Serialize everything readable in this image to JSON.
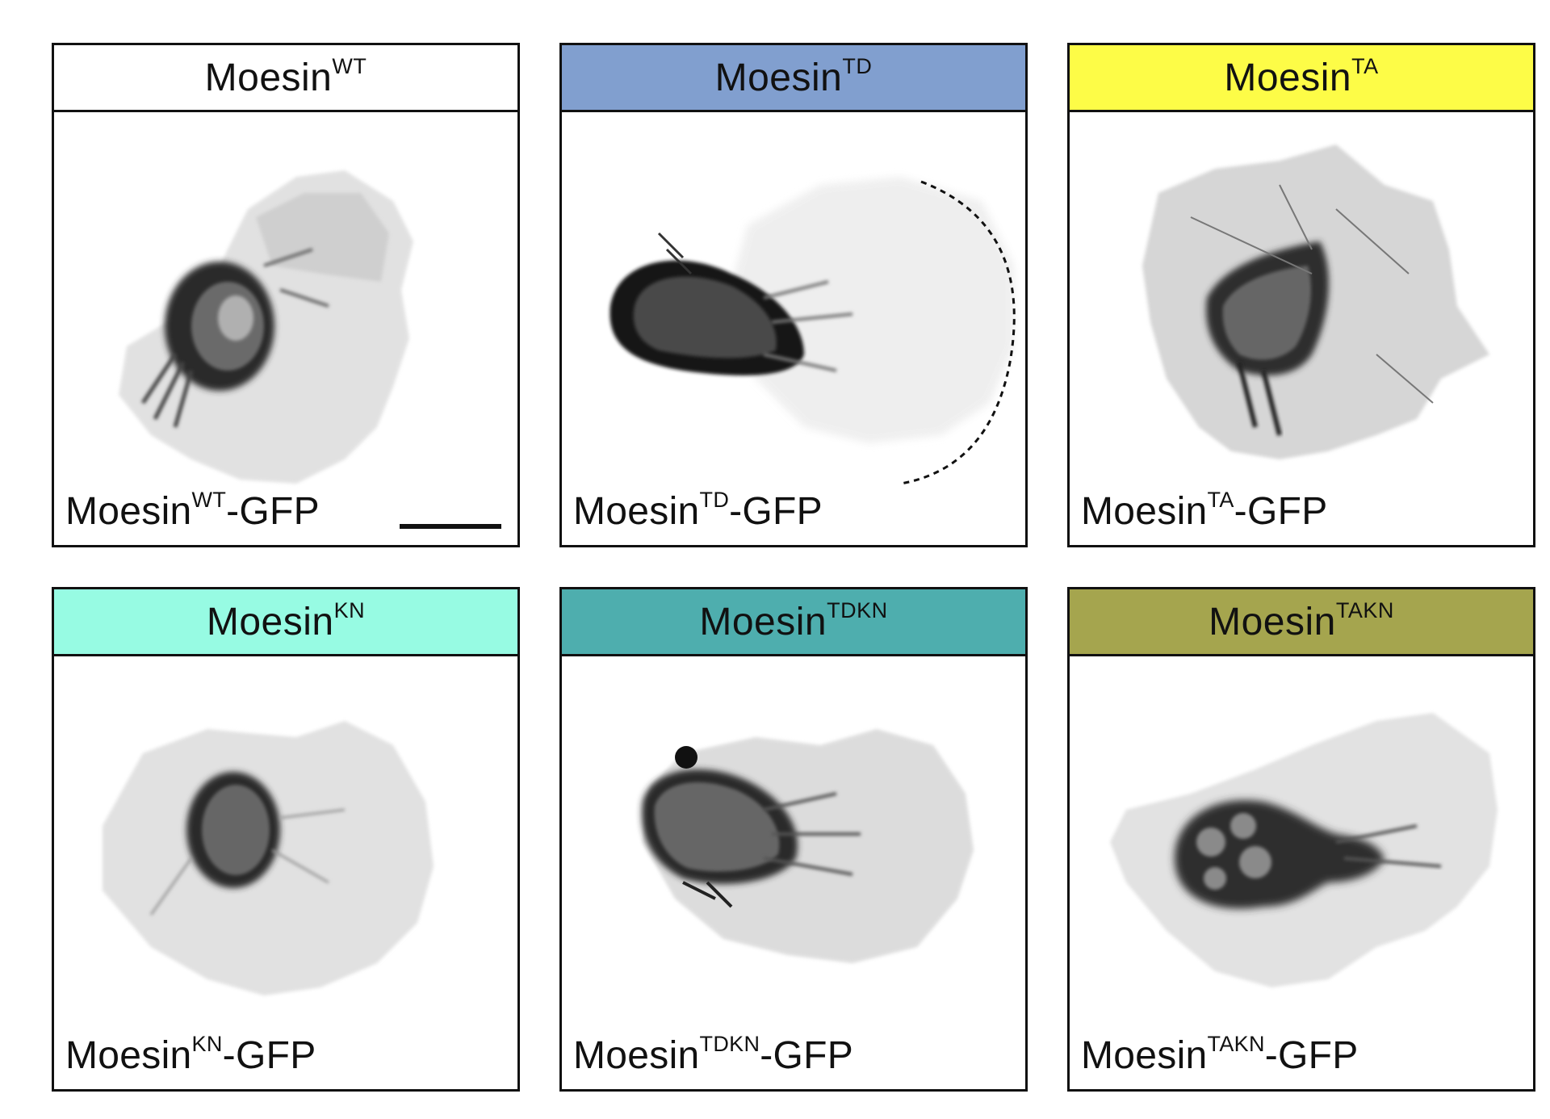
{
  "panels": [
    {
      "id": "wt",
      "title_base": "Moesin",
      "title_sup": "WT",
      "header_color": "#ffffff",
      "caption_base": "Moesin",
      "caption_sup": "WT",
      "caption_suffix": "-GFP"
    },
    {
      "id": "td",
      "title_base": "Moesin",
      "title_sup": "TD",
      "header_color": "#819fcf",
      "caption_base": "Moesin",
      "caption_sup": "TD",
      "caption_suffix": "-GFP"
    },
    {
      "id": "ta",
      "title_base": "Moesin",
      "title_sup": "TA",
      "header_color": "#fdfc47",
      "caption_base": "Moesin",
      "caption_sup": "TA",
      "caption_suffix": "-GFP"
    },
    {
      "id": "kn",
      "title_base": "Moesin",
      "title_sup": "KN",
      "header_color": "#97fbe3",
      "caption_base": "Moesin",
      "caption_sup": "KN",
      "caption_suffix": "-GFP"
    },
    {
      "id": "tdkn",
      "title_base": "Moesin",
      "title_sup": "TDKN",
      "header_color": "#4eaeae",
      "caption_base": "Moesin",
      "caption_sup": "TDKN",
      "caption_suffix": "-GFP"
    },
    {
      "id": "takn",
      "title_base": "Moesin",
      "title_sup": "TAKN",
      "header_color": "#a5a54e",
      "caption_base": "Moesin",
      "caption_sup": "TAKN",
      "caption_suffix": "-GFP"
    }
  ]
}
